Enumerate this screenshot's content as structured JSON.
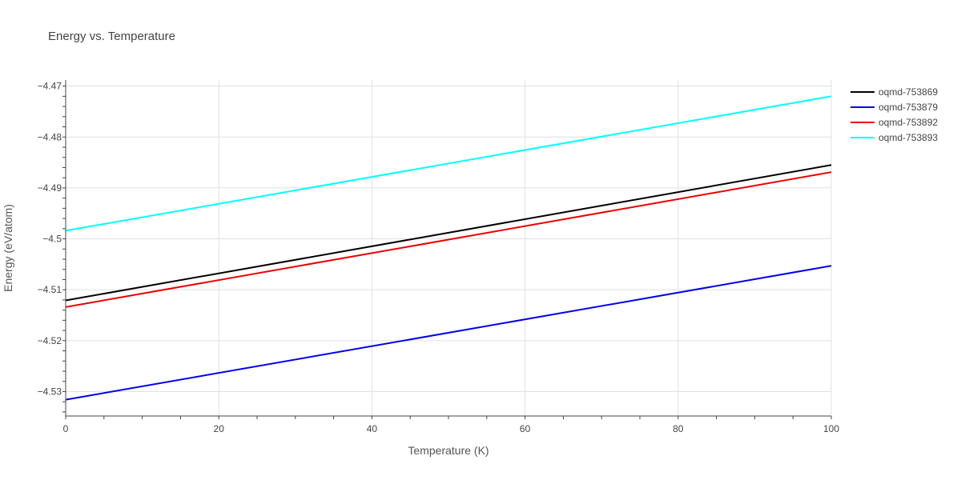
{
  "chart_data": {
    "type": "line",
    "title": "Energy vs. Temperature",
    "xlabel": "Temperature (K)",
    "ylabel": "Energy (eV/atom)",
    "xlim": [
      0,
      100
    ],
    "ylim": [
      -4.5348,
      -4.4688
    ],
    "x_ticks": [
      0,
      20,
      40,
      60,
      80,
      100
    ],
    "x_tick_labels": [
      "0",
      "20",
      "40",
      "60",
      "80",
      "100"
    ],
    "y_ticks": [
      -4.53,
      -4.52,
      -4.51,
      -4.5,
      -4.49,
      -4.48,
      -4.47
    ],
    "y_tick_labels": [
      "−4.53",
      "−4.52",
      "−4.51",
      "−4.5",
      "−4.49",
      "−4.48",
      "−4.47"
    ],
    "grid": true,
    "legend_position": "top-right",
    "x": [
      0,
      100
    ],
    "series": [
      {
        "name": "oqmd-753869",
        "color": "#000000",
        "values": [
          -4.5121,
          -4.4855
        ]
      },
      {
        "name": "oqmd-753879",
        "color": "#0000ee",
        "values": [
          -4.5316,
          -4.5053
        ]
      },
      {
        "name": "oqmd-753892",
        "color": "#ee0000",
        "values": [
          -4.5134,
          -4.4869
        ]
      },
      {
        "name": "oqmd-753893",
        "color": "#00ffff",
        "values": [
          -4.4984,
          -4.472
        ]
      }
    ]
  }
}
